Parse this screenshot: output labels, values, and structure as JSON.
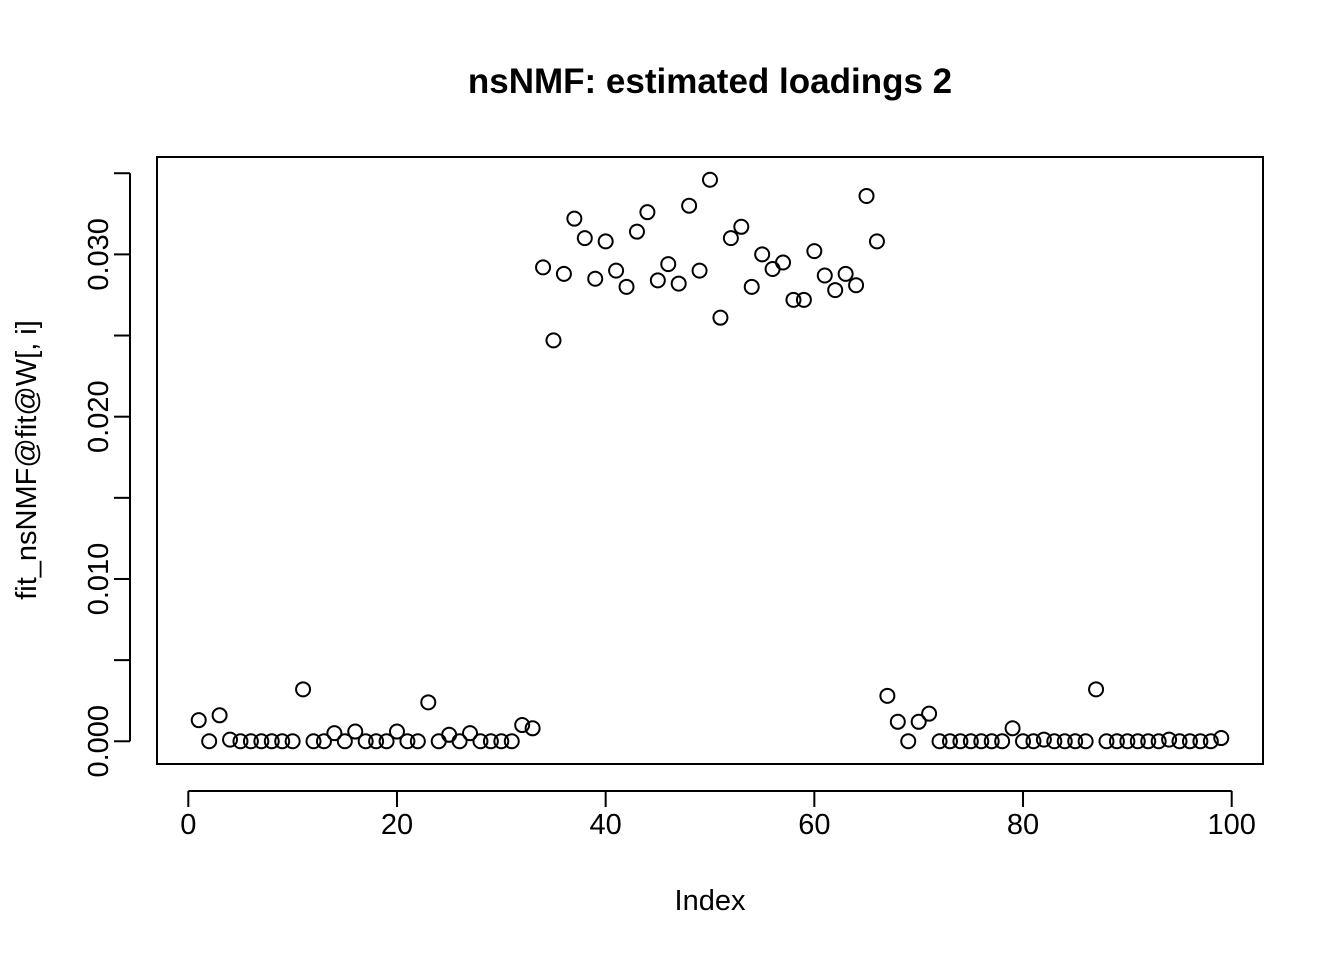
{
  "chart_data": {
    "type": "scatter",
    "title": "nsNMF: estimated loadings 2",
    "xlabel": "Index",
    "ylabel": "fit_nsNMF@fit@W[, i]",
    "xlim": [
      -3,
      103
    ],
    "ylim": [
      -0.0014,
      0.036
    ],
    "xticks": [
      0,
      20,
      40,
      60,
      80,
      100
    ],
    "xtick_labels": [
      "0",
      "20",
      "40",
      "60",
      "80",
      "100"
    ],
    "yticks": [
      0.0,
      0.005,
      0.01,
      0.015,
      0.02,
      0.025,
      0.03,
      0.035
    ],
    "ytick_labels": [
      "0.000",
      "",
      "0.010",
      "",
      "0.020",
      "",
      "0.030",
      ""
    ],
    "grid": false,
    "marker": "open-circle",
    "points": [
      [
        1,
        0.0013
      ],
      [
        2,
        0.0
      ],
      [
        3,
        0.0016
      ],
      [
        4,
        0.0001
      ],
      [
        5,
        0.0
      ],
      [
        6,
        0.0
      ],
      [
        7,
        0.0
      ],
      [
        8,
        0.0
      ],
      [
        9,
        0.0
      ],
      [
        10,
        0.0
      ],
      [
        11,
        0.0032
      ],
      [
        12,
        0.0
      ],
      [
        13,
        0.0
      ],
      [
        14,
        0.0005
      ],
      [
        15,
        0.0
      ],
      [
        16,
        0.0006
      ],
      [
        17,
        0.0
      ],
      [
        18,
        0.0
      ],
      [
        19,
        0.0
      ],
      [
        20,
        0.0006
      ],
      [
        21,
        0.0
      ],
      [
        22,
        0.0
      ],
      [
        23,
        0.0024
      ],
      [
        24,
        0.0
      ],
      [
        25,
        0.0004
      ],
      [
        26,
        0.0
      ],
      [
        27,
        0.0005
      ],
      [
        28,
        0.0
      ],
      [
        29,
        0.0
      ],
      [
        30,
        0.0
      ],
      [
        31,
        0.0
      ],
      [
        32,
        0.001
      ],
      [
        33,
        0.0008
      ],
      [
        34,
        0.0292
      ],
      [
        35,
        0.0247
      ],
      [
        36,
        0.0288
      ],
      [
        37,
        0.0322
      ],
      [
        38,
        0.031
      ],
      [
        39,
        0.0285
      ],
      [
        40,
        0.0308
      ],
      [
        41,
        0.029
      ],
      [
        42,
        0.028
      ],
      [
        43,
        0.0314
      ],
      [
        44,
        0.0326
      ],
      [
        45,
        0.0284
      ],
      [
        46,
        0.0294
      ],
      [
        47,
        0.0282
      ],
      [
        48,
        0.033
      ],
      [
        49,
        0.029
      ],
      [
        50,
        0.0346
      ],
      [
        51,
        0.0261
      ],
      [
        52,
        0.031
      ],
      [
        53,
        0.0317
      ],
      [
        54,
        0.028
      ],
      [
        55,
        0.03
      ],
      [
        56,
        0.0291
      ],
      [
        57,
        0.0295
      ],
      [
        58,
        0.0272
      ],
      [
        59,
        0.0272
      ],
      [
        60,
        0.0302
      ],
      [
        61,
        0.0287
      ],
      [
        62,
        0.0278
      ],
      [
        63,
        0.0288
      ],
      [
        64,
        0.0281
      ],
      [
        65,
        0.0336
      ],
      [
        66,
        0.0308
      ],
      [
        67,
        0.0028
      ],
      [
        68,
        0.0012
      ],
      [
        69,
        0.0
      ],
      [
        70,
        0.0012
      ],
      [
        71,
        0.0017
      ],
      [
        72,
        0.0
      ],
      [
        73,
        0.0
      ],
      [
        74,
        0.0
      ],
      [
        75,
        0.0
      ],
      [
        76,
        0.0
      ],
      [
        77,
        0.0
      ],
      [
        78,
        0.0
      ],
      [
        79,
        0.0008
      ],
      [
        80,
        0.0
      ],
      [
        81,
        0.0
      ],
      [
        82,
        0.0001
      ],
      [
        83,
        0.0
      ],
      [
        84,
        0.0
      ],
      [
        85,
        0.0
      ],
      [
        86,
        0.0
      ],
      [
        87,
        0.0032
      ],
      [
        88,
        0.0
      ],
      [
        89,
        0.0
      ],
      [
        90,
        0.0
      ],
      [
        91,
        0.0
      ],
      [
        92,
        0.0
      ],
      [
        93,
        0.0
      ],
      [
        94,
        0.0001
      ],
      [
        95,
        0.0
      ],
      [
        96,
        0.0
      ],
      [
        97,
        0.0
      ],
      [
        98,
        0.0
      ],
      [
        99,
        0.0002
      ]
    ]
  }
}
